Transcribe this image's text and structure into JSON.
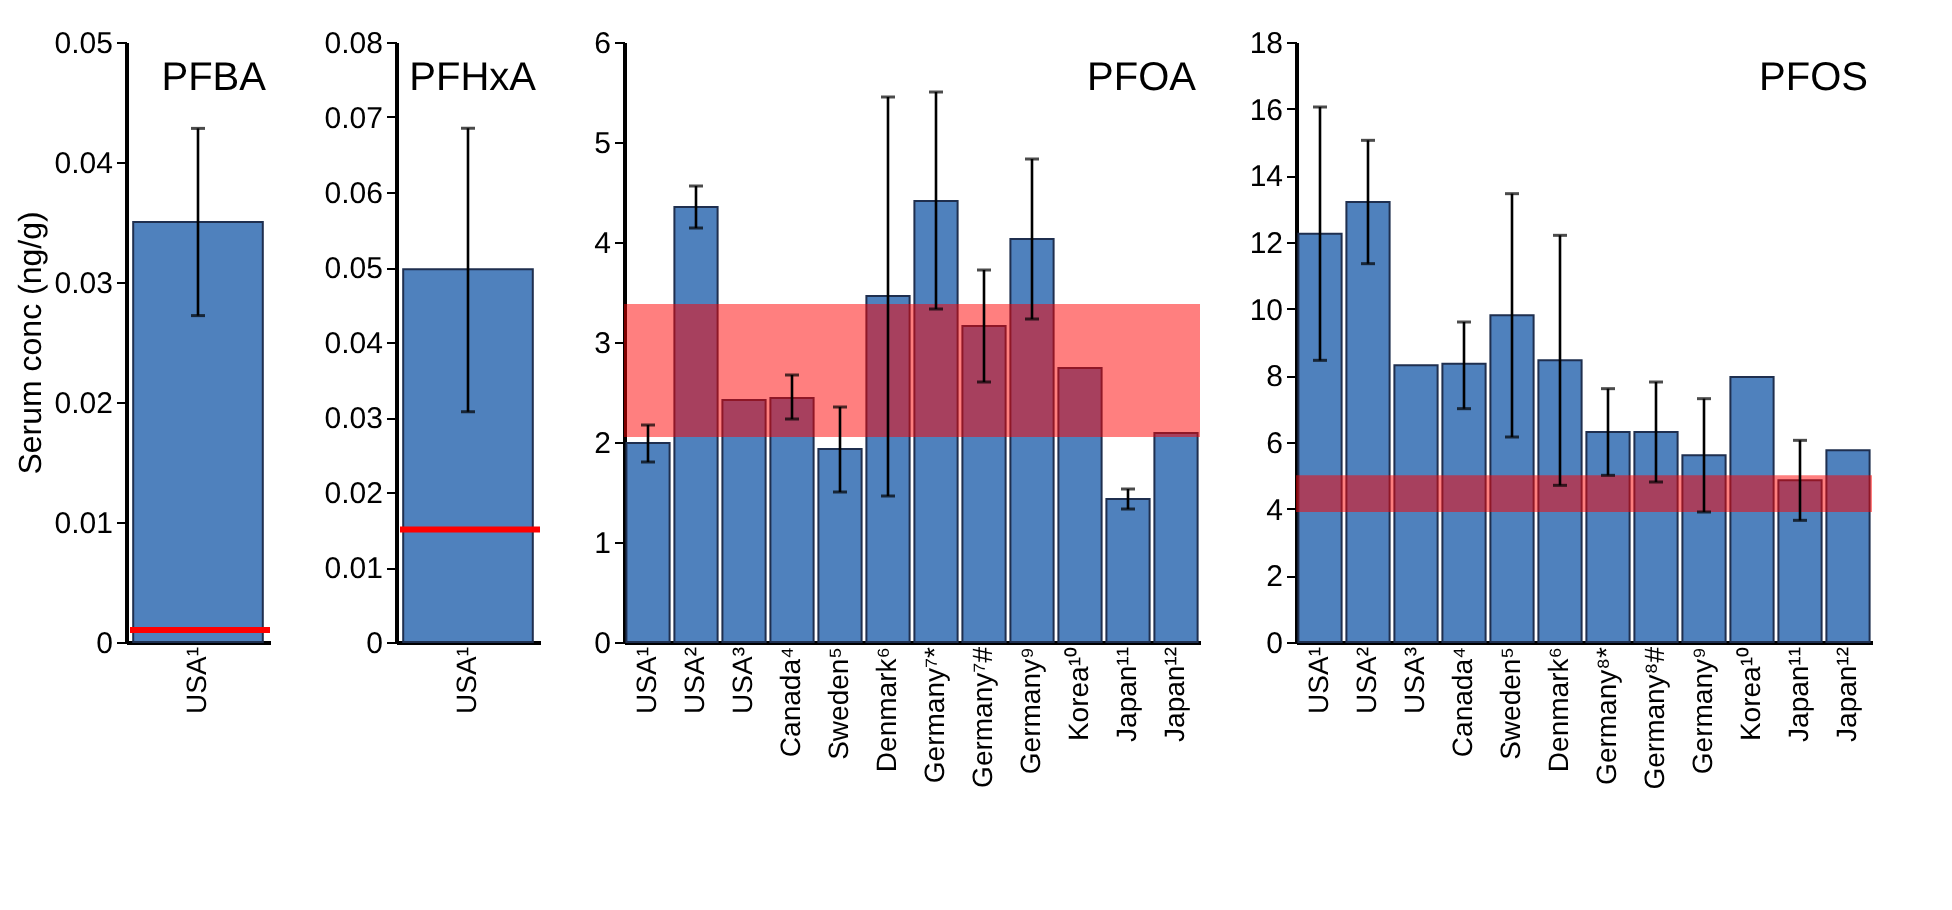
{
  "chart_data": [
    {
      "type": "bar",
      "title": "PFBA",
      "ylabel": "Serum conc (ng/g)",
      "categories": [
        "USA¹"
      ],
      "values": [
        0.035
      ],
      "errors": [
        [
          0.0272,
          0.0428
        ]
      ],
      "color": "#4f81bd",
      "ylim": [
        0,
        0.05
      ],
      "yticks": [
        0,
        0.01,
        0.02,
        0.03,
        0.04,
        0.05
      ],
      "grid": false,
      "ref_lines": [
        {
          "axis": "y",
          "value": 0.001,
          "color": "#ff0000"
        }
      ]
    },
    {
      "type": "bar",
      "title": "PFHxA",
      "categories": [
        "USA¹"
      ],
      "values": [
        0.0497
      ],
      "errors": [
        [
          0.0307,
          0.0685
        ]
      ],
      "color": "#4f81bd",
      "ylim": [
        0,
        0.08
      ],
      "yticks": [
        0,
        0.01,
        0.02,
        0.03,
        0.04,
        0.05,
        0.06,
        0.07,
        0.08
      ],
      "grid": false,
      "ref_lines": [
        {
          "axis": "y",
          "value": 0.015,
          "color": "#ff0000"
        }
      ]
    },
    {
      "type": "bar",
      "title": "PFOA",
      "categories": [
        "USA¹",
        "USA²",
        "USA³",
        "Canada⁴",
        "Sweden⁵",
        "Denmark⁶",
        "Germany⁷*",
        "Germany⁷#",
        "Germany⁹",
        "Korea¹⁰",
        "Japan¹¹",
        "Japan¹²"
      ],
      "values": [
        1.99,
        4.35,
        2.42,
        2.44,
        1.93,
        3.46,
        4.41,
        3.16,
        4.03,
        2.74,
        1.43,
        2.09
      ],
      "errors": [
        [
          1.8,
          2.17
        ],
        [
          4.14,
          4.56
        ],
        null,
        [
          2.23,
          2.67
        ],
        [
          1.5,
          2.35
        ],
        [
          1.46,
          5.45
        ],
        [
          3.33,
          5.5
        ],
        [
          2.6,
          3.72
        ],
        [
          3.23,
          4.83
        ],
        null,
        [
          1.33,
          1.53
        ],
        null
      ],
      "color": "#4f81bd",
      "ylim": [
        0,
        6
      ],
      "yticks": [
        0,
        1,
        2,
        3,
        4,
        5,
        6
      ],
      "grid": false,
      "bands": [
        {
          "axis": "y",
          "from": 2.05,
          "to": 3.38,
          "color": "#ff0000"
        }
      ]
    },
    {
      "type": "bar",
      "title": "PFOS",
      "categories": [
        "USA¹",
        "USA²",
        "USA³",
        "Canada⁴",
        "Sweden⁵",
        "Denmark⁶",
        "Germany⁸*",
        "Germany⁸#",
        "Germany⁹",
        "Korea¹⁰",
        "Japan¹¹",
        "Japan¹²"
      ],
      "values": [
        12.25,
        13.2,
        8.3,
        8.35,
        9.8,
        8.45,
        6.3,
        6.3,
        5.6,
        7.95,
        4.85,
        5.75
      ],
      "errors": [
        [
          8.45,
          16.05
        ],
        [
          11.35,
          15.05
        ],
        null,
        [
          7.0,
          9.6
        ],
        [
          6.15,
          13.45
        ],
        [
          4.7,
          12.2
        ],
        [
          5.0,
          7.6
        ],
        [
          4.8,
          7.8
        ],
        [
          3.9,
          7.3
        ],
        null,
        [
          3.65,
          6.05
        ],
        null
      ],
      "color": "#4f81bd",
      "ylim": [
        0,
        18
      ],
      "yticks": [
        0,
        2,
        4,
        6,
        8,
        10,
        12,
        14,
        16,
        18
      ],
      "grid": false,
      "bands": [
        {
          "axis": "y",
          "from": 3.9,
          "to": 5.0,
          "color": "#ff0000"
        }
      ]
    }
  ]
}
